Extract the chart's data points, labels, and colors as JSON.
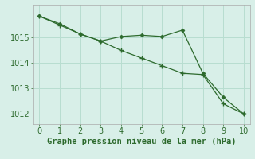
{
  "line1_x": [
    0,
    1,
    2,
    3,
    4,
    5,
    6,
    7,
    8,
    9,
    10
  ],
  "line1_y": [
    1015.85,
    1015.55,
    1015.15,
    1014.87,
    1015.05,
    1015.1,
    1015.05,
    1015.3,
    1013.6,
    1012.65,
    1012.0
  ],
  "line2_x": [
    0,
    1,
    2,
    3,
    4,
    5,
    6,
    7,
    8,
    9,
    10
  ],
  "line2_y": [
    1015.85,
    1015.5,
    1015.15,
    1014.87,
    1014.5,
    1014.2,
    1013.9,
    1013.6,
    1013.55,
    1012.4,
    1012.0
  ],
  "line_color": "#2d6a2d",
  "bg_color": "#d8efe8",
  "grid_color": "#b8ddd0",
  "xlabel": "Graphe pression niveau de la mer (hPa)",
  "xlim": [
    -0.3,
    10.3
  ],
  "ylim": [
    1011.6,
    1016.3
  ],
  "yticks": [
    1012,
    1013,
    1014,
    1015
  ],
  "xticks": [
    0,
    1,
    2,
    3,
    4,
    5,
    6,
    7,
    8,
    9,
    10
  ],
  "tick_fontsize": 7,
  "xlabel_fontsize": 7.5
}
